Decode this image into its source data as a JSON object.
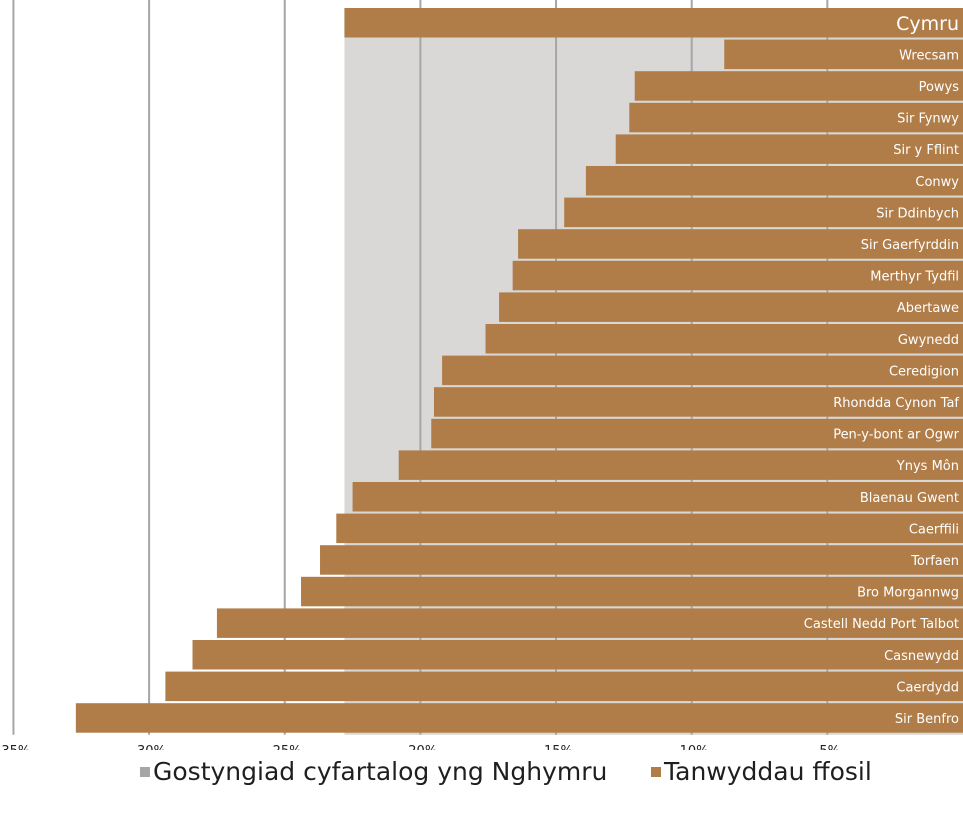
{
  "colors": {
    "average_band": "#d9d8d7",
    "bars": "#b07d48",
    "gridline": "#a6a6a6",
    "bar_label": "#ffffff",
    "tick_label": "#1f1f1f"
  },
  "legend": {
    "average_label": "Gostyngiad cyfartalog yng Nghymru",
    "bars_label": "Tanwyddau ffosil"
  },
  "chart_data": {
    "type": "bar",
    "orientation": "horizontal",
    "unit": "%",
    "xlim": [
      -35,
      0
    ],
    "x_ticks": [
      -35,
      -30,
      -25,
      -20,
      -15,
      -10,
      -5
    ],
    "x_tick_labels": [
      "-35%",
      "-30%",
      "-25%",
      "-20%",
      "-15%",
      "-10%",
      "-5%"
    ],
    "grid": true,
    "legend_position": "bottom",
    "average_reduction": -22.8,
    "categories": [
      "Cymru",
      "Wrecsam",
      "Powys",
      "Sir Fynwy",
      "Sir y Fflint",
      "Conwy",
      "Sir Ddinbych",
      "Sir Gaerfyrddin",
      "Merthyr Tydfil",
      "Abertawe",
      "Gwynedd",
      "Ceredigion",
      "Rhondda Cynon Taf",
      "Pen-y-bont ar Ogwr",
      "Ynys Môn",
      "Blaenau Gwent",
      "Caerffili",
      "Torfaen",
      "Bro Morgannwg",
      "Castell Nedd Port Talbot",
      "Casnewydd",
      "Caerdydd",
      "Sir Benfro"
    ],
    "series": [
      {
        "name": "Tanwyddau ffosil",
        "values": [
          -22.8,
          -8.8,
          -12.1,
          -12.3,
          -12.8,
          -13.9,
          -14.7,
          -16.4,
          -16.6,
          -17.1,
          -17.6,
          -19.2,
          -19.5,
          -19.6,
          -20.8,
          -22.5,
          -23.1,
          -23.7,
          -24.4,
          -27.5,
          -28.4,
          -29.4,
          -32.7
        ]
      }
    ]
  }
}
